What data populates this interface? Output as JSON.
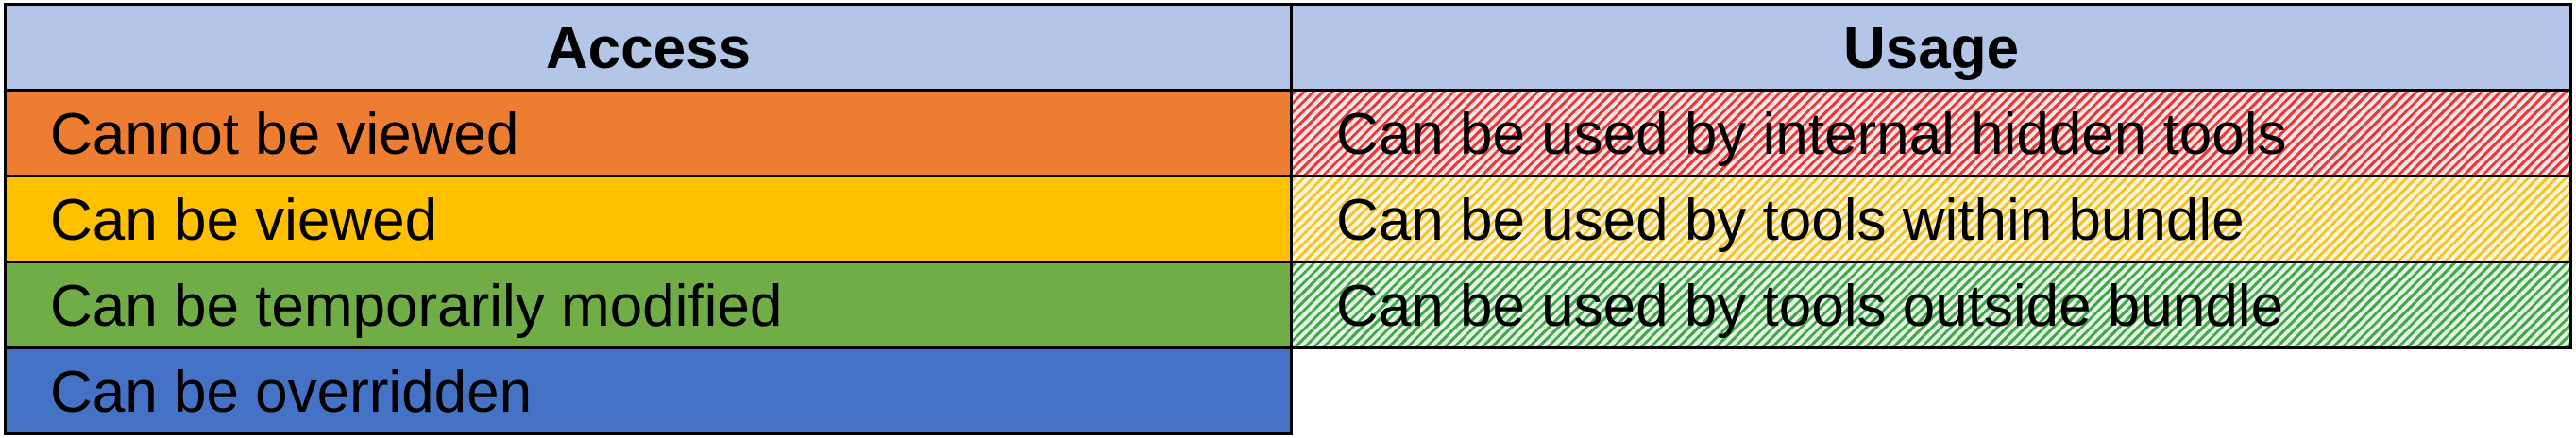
{
  "access": {
    "header": "Access",
    "header_color": "#b4c6e7",
    "items": [
      {
        "label": "Cannot be viewed",
        "color": "#ed7d31"
      },
      {
        "label": "Can be viewed",
        "color": "#ffc000"
      },
      {
        "label": "Can be temporarily modified",
        "color": "#70ad47"
      },
      {
        "label": "Can be overridden",
        "color": "#4472c4"
      }
    ]
  },
  "usage": {
    "header": "Usage",
    "header_color": "#b4c6e7",
    "items": [
      {
        "label": "Can be used by internal hidden tools",
        "color": "#e23b3b",
        "pattern": "diagonal-hatch"
      },
      {
        "label": "Can be used by tools within bundle",
        "color": "#f2c230",
        "pattern": "diagonal-hatch"
      },
      {
        "label": "Can be used by tools outside bundle",
        "color": "#44a84a",
        "pattern": "diagonal-hatch"
      }
    ]
  }
}
